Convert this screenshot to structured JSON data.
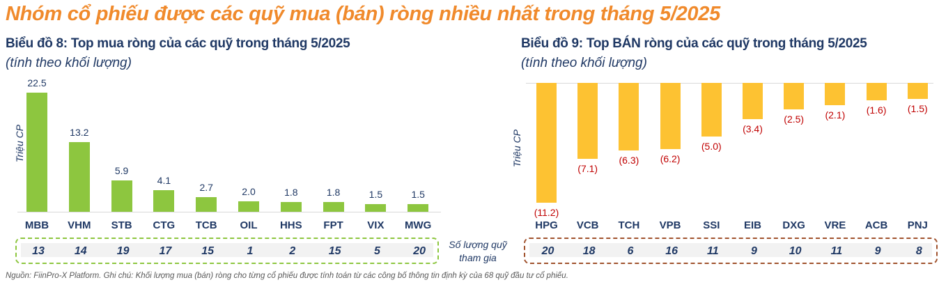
{
  "header": {
    "title": "Nhóm cổ phiếu được các quỹ mua (bán) ròng nhiều nhất trong tháng 5/2025"
  },
  "legend_note": {
    "line1": "Số lượng quỹ",
    "line2": "tham gia"
  },
  "footer": {
    "source": "Nguồn: FiinPro-X Platform. Ghi chú: Khối lượng mua (bán) ròng cho từng cổ phiếu được tính toán từ các công bố thông tin định kỳ của 68 quỹ đầu tư cổ phiếu."
  },
  "colors": {
    "title": "#f08a2c",
    "buy_bar": "#8dc63f",
    "sell_bar": "#fdc232",
    "negative_label": "#c00000",
    "text": "#1f3864",
    "buy_box_border": "#8dc63f",
    "sell_box_border": "#a0522d"
  },
  "charts": {
    "buy": {
      "title": "Biểu đồ 8: Top mua ròng của các quỹ trong tháng 5/2025",
      "subtitle": "(tính theo khối lượng)",
      "ylabel": "Triệu CP",
      "labels": [
        "22.5",
        "13.2",
        "5.9",
        "4.1",
        "2.7",
        "2.0",
        "1.8",
        "1.8",
        "1.5",
        "1.5"
      ],
      "categories": [
        "MBB",
        "VHM",
        "STB",
        "CTG",
        "TCB",
        "OIL",
        "HHS",
        "FPT",
        "VIX",
        "MWG"
      ],
      "fund_counts": [
        "13",
        "14",
        "19",
        "17",
        "15",
        "1",
        "2",
        "15",
        "5",
        "20"
      ]
    },
    "sell": {
      "title": "Biểu đồ 9: Top BÁN ròng của các quỹ trong tháng 5/2025",
      "subtitle": "(tính theo khối lượng)",
      "ylabel": "Triệu CP",
      "labels": [
        "(11.2)",
        "(7.1)",
        "(6.3)",
        "(6.2)",
        "(5.0)",
        "(3.4)",
        "(2.5)",
        "(2.1)",
        "(1.6)",
        "(1.5)"
      ],
      "categories": [
        "HPG",
        "VCB",
        "TCH",
        "VPB",
        "SSI",
        "EIB",
        "DXG",
        "VRE",
        "ACB",
        "PNJ"
      ],
      "fund_counts": [
        "20",
        "18",
        "6",
        "16",
        "11",
        "9",
        "10",
        "11",
        "9",
        "8"
      ]
    }
  },
  "chart_data": [
    {
      "type": "bar",
      "title": "Biểu đồ 8: Top mua ròng của các quỹ trong tháng 5/2025",
      "subtitle": "(tính theo khối lượng)",
      "xlabel": "",
      "ylabel": "Triệu CP",
      "categories": [
        "MBB",
        "VHM",
        "STB",
        "CTG",
        "TCB",
        "OIL",
        "HHS",
        "FPT",
        "VIX",
        "MWG"
      ],
      "values": [
        22.5,
        13.2,
        5.9,
        4.1,
        2.7,
        2.0,
        1.8,
        1.8,
        1.5,
        1.5
      ],
      "annotations": {
        "label": "Số lượng quỹ tham gia",
        "values": [
          13,
          14,
          19,
          17,
          15,
          1,
          2,
          15,
          5,
          20
        ]
      },
      "grid": false,
      "ylim": [
        0,
        22.5
      ]
    },
    {
      "type": "bar",
      "title": "Biểu đồ 9: Top BÁN ròng của các quỹ trong tháng 5/2025",
      "subtitle": "(tính theo khối lượng)",
      "xlabel": "",
      "ylabel": "Triệu CP",
      "categories": [
        "HPG",
        "VCB",
        "TCH",
        "VPB",
        "SSI",
        "EIB",
        "DXG",
        "VRE",
        "ACB",
        "PNJ"
      ],
      "values": [
        -11.2,
        -7.1,
        -6.3,
        -6.2,
        -5.0,
        -3.4,
        -2.5,
        -2.1,
        -1.6,
        -1.5
      ],
      "annotations": {
        "label": "Số lượng quỹ tham gia",
        "values": [
          20,
          18,
          6,
          16,
          11,
          9,
          10,
          11,
          9,
          8
        ]
      },
      "grid": false,
      "ylim": [
        -11.2,
        0
      ]
    }
  ]
}
